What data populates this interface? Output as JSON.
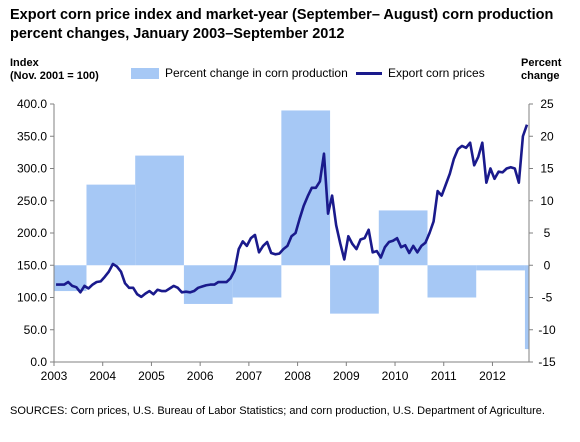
{
  "title": "Export corn price index and market-year (September– August) corn production percent changes, January 2003–September 2012",
  "left_axis_label_1": "Index",
  "left_axis_label_2": "(Nov. 2001 = 100)",
  "right_axis_label_1": "Percent",
  "right_axis_label_2": "change",
  "source": "SOURCES: Corn prices, U.S. Bureau of Labor Statistics; and corn production,  U.S. Department of Agriculture.",
  "colors": {
    "bars": "#a6c8f5",
    "line": "#1a1a8c"
  },
  "chart_data": {
    "type": "bar+line",
    "x_ticks": [
      "2003",
      "2004",
      "2005",
      "2006",
      "2007",
      "2008",
      "2009",
      "2010",
      "2011",
      "2012"
    ],
    "left_ticks": [
      "400.0",
      "350.0",
      "300.0",
      "250.0",
      "200.0",
      "150.0",
      "100.0",
      "50.0",
      "0.0"
    ],
    "right_ticks": [
      "25",
      "20",
      "15",
      "10",
      "5",
      "0",
      "-5",
      "-10",
      "-15"
    ],
    "left_ylim": [
      0,
      400
    ],
    "right_ylim": [
      -15,
      25
    ],
    "grid": false,
    "legend_position": "top",
    "series": [
      {
        "name": "Percent change  in corn production",
        "type": "bar",
        "axis": "right",
        "periods": [
          {
            "start": "2003-01",
            "end": "2003-08",
            "value": -4
          },
          {
            "start": "2003-09",
            "end": "2004-08",
            "value": 12.5
          },
          {
            "start": "2004-09",
            "end": "2005-08",
            "value": 17
          },
          {
            "start": "2005-09",
            "end": "2006-08",
            "value": -6
          },
          {
            "start": "2006-09",
            "end": "2007-08",
            "value": -5
          },
          {
            "start": "2007-09",
            "end": "2008-08",
            "value": 24
          },
          {
            "start": "2008-09",
            "end": "2009-08",
            "value": -7.5
          },
          {
            "start": "2009-09",
            "end": "2010-08",
            "value": 8.5
          },
          {
            "start": "2010-09",
            "end": "2011-08",
            "value": -5
          },
          {
            "start": "2011-09",
            "end": "2012-08",
            "value": -0.8
          },
          {
            "start": "2012-09",
            "end": "2012-09",
            "value": -13
          }
        ]
      },
      {
        "name": "Export corn prices",
        "type": "line",
        "axis": "left",
        "points": [
          [
            "2003-01",
            120
          ],
          [
            "2003-02",
            120
          ],
          [
            "2003-03",
            120
          ],
          [
            "2003-04",
            124
          ],
          [
            "2003-05",
            118
          ],
          [
            "2003-06",
            116
          ],
          [
            "2003-07",
            108
          ],
          [
            "2003-08",
            118
          ],
          [
            "2003-09",
            114
          ],
          [
            "2003-10",
            120
          ],
          [
            "2003-11",
            124
          ],
          [
            "2003-12",
            125
          ],
          [
            "2004-01",
            132
          ],
          [
            "2004-02",
            140
          ],
          [
            "2004-03",
            152
          ],
          [
            "2004-04",
            148
          ],
          [
            "2004-05",
            140
          ],
          [
            "2004-06",
            122
          ],
          [
            "2004-07",
            115
          ],
          [
            "2004-08",
            115
          ],
          [
            "2004-09",
            105
          ],
          [
            "2004-10",
            101
          ],
          [
            "2004-11",
            106
          ],
          [
            "2004-12",
            110
          ],
          [
            "2005-01",
            105
          ],
          [
            "2005-02",
            112
          ],
          [
            "2005-03",
            110
          ],
          [
            "2005-04",
            110
          ],
          [
            "2005-05",
            114
          ],
          [
            "2005-06",
            118
          ],
          [
            "2005-07",
            115
          ],
          [
            "2005-08",
            108
          ],
          [
            "2005-09",
            109
          ],
          [
            "2005-10",
            108
          ],
          [
            "2005-11",
            110
          ],
          [
            "2005-12",
            115
          ],
          [
            "2006-01",
            117
          ],
          [
            "2006-02",
            119
          ],
          [
            "2006-03",
            120
          ],
          [
            "2006-04",
            120
          ],
          [
            "2006-05",
            124
          ],
          [
            "2006-06",
            124
          ],
          [
            "2006-07",
            124
          ],
          [
            "2006-08",
            130
          ],
          [
            "2006-09",
            142
          ],
          [
            "2006-10",
            175
          ],
          [
            "2006-11",
            187
          ],
          [
            "2006-12",
            180
          ],
          [
            "2007-01",
            192
          ],
          [
            "2007-02",
            197
          ],
          [
            "2007-03",
            170
          ],
          [
            "2007-04",
            180
          ],
          [
            "2007-05",
            186
          ],
          [
            "2007-06",
            169
          ],
          [
            "2007-07",
            167
          ],
          [
            "2007-08",
            168
          ],
          [
            "2007-09",
            175
          ],
          [
            "2007-10",
            180
          ],
          [
            "2007-11",
            195
          ],
          [
            "2007-12",
            200
          ],
          [
            "2008-01",
            222
          ],
          [
            "2008-02",
            242
          ],
          [
            "2008-03",
            257
          ],
          [
            "2008-04",
            270
          ],
          [
            "2008-05",
            270
          ],
          [
            "2008-06",
            280
          ],
          [
            "2008-07",
            323
          ],
          [
            "2008-08",
            230
          ],
          [
            "2008-09",
            258
          ],
          [
            "2008-10",
            212
          ],
          [
            "2008-11",
            184
          ],
          [
            "2008-12",
            159
          ],
          [
            "2009-01",
            195
          ],
          [
            "2009-02",
            183
          ],
          [
            "2009-03",
            175
          ],
          [
            "2009-04",
            190
          ],
          [
            "2009-05",
            192
          ],
          [
            "2009-06",
            205
          ],
          [
            "2009-07",
            170
          ],
          [
            "2009-08",
            172
          ],
          [
            "2009-09",
            162
          ],
          [
            "2009-10",
            178
          ],
          [
            "2009-11",
            186
          ],
          [
            "2009-12",
            188
          ],
          [
            "2010-01",
            192
          ],
          [
            "2010-02",
            178
          ],
          [
            "2010-03",
            181
          ],
          [
            "2010-04",
            169
          ],
          [
            "2010-05",
            180
          ],
          [
            "2010-06",
            170
          ],
          [
            "2010-07",
            180
          ],
          [
            "2010-08",
            185
          ],
          [
            "2010-09",
            200
          ],
          [
            "2010-10",
            218
          ],
          [
            "2010-11",
            265
          ],
          [
            "2010-12",
            258
          ],
          [
            "2011-01",
            275
          ],
          [
            "2011-02",
            292
          ],
          [
            "2011-03",
            315
          ],
          [
            "2011-04",
            330
          ],
          [
            "2011-05",
            335
          ],
          [
            "2011-06",
            332
          ],
          [
            "2011-07",
            340
          ],
          [
            "2011-08",
            305
          ],
          [
            "2011-09",
            318
          ],
          [
            "2011-10",
            340
          ],
          [
            "2011-11",
            278
          ],
          [
            "2011-12",
            300
          ],
          [
            "2012-01",
            284
          ],
          [
            "2012-02",
            295
          ],
          [
            "2012-03",
            294
          ],
          [
            "2012-04",
            300
          ],
          [
            "2012-05",
            302
          ],
          [
            "2012-06",
            300
          ],
          [
            "2012-07",
            278
          ],
          [
            "2012-08",
            350
          ],
          [
            "2012-09",
            368
          ]
        ]
      }
    ]
  }
}
